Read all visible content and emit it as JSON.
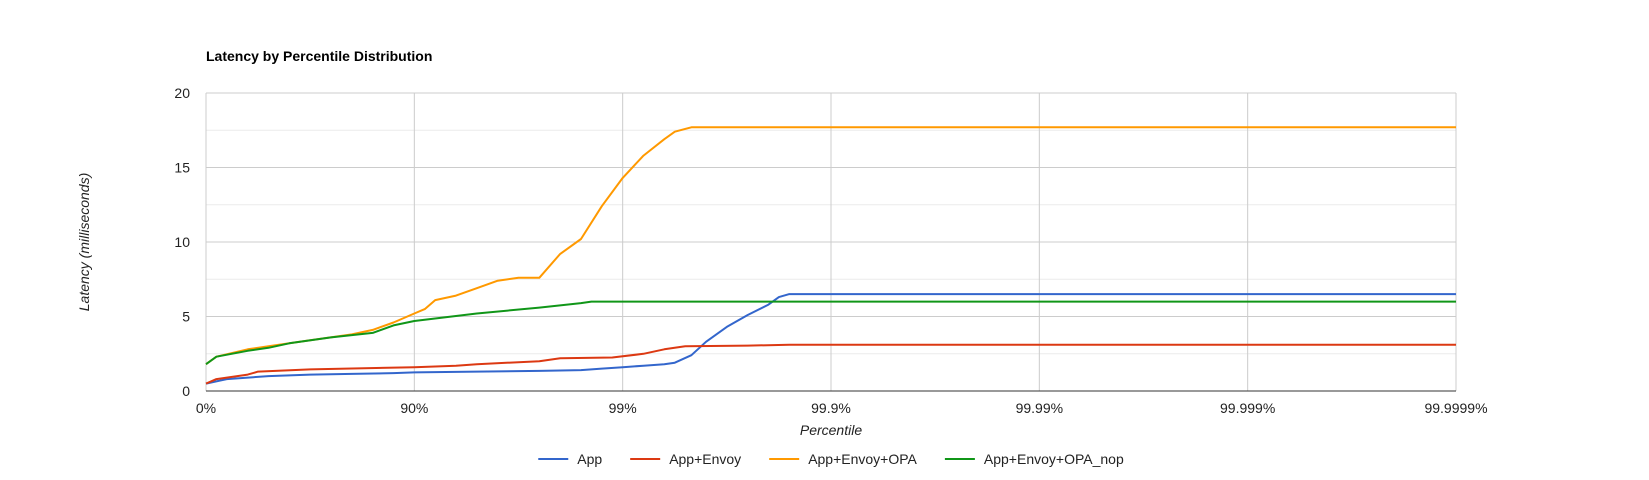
{
  "chart_data": {
    "type": "line",
    "title": "Latency by Percentile Distribution",
    "xlabel": "Percentile",
    "ylabel": "Latency (milliseconds)",
    "x_scale": "log-inverse (1/(1-p))",
    "x_ticks": [
      "0%",
      "90%",
      "99%",
      "99.9%",
      "99.99%",
      "99.999%",
      "99.9999%"
    ],
    "y_ticks": [
      "0",
      "5",
      "10",
      "15",
      "20"
    ],
    "ylim": [
      0,
      20
    ],
    "grid": true,
    "legend_position": "bottom",
    "series": [
      {
        "name": "App",
        "color": "#3366cc",
        "points": [
          [
            0,
            0.5
          ],
          [
            0.1,
            0.8
          ],
          [
            0.3,
            1.0
          ],
          [
            0.5,
            1.1
          ],
          [
            0.7,
            1.15
          ],
          [
            0.9,
            1.2
          ],
          [
            1.0,
            1.25
          ],
          [
            1.3,
            1.3
          ],
          [
            1.6,
            1.35
          ],
          [
            1.8,
            1.4
          ],
          [
            1.9,
            1.5
          ],
          [
            2.0,
            1.6
          ],
          [
            2.1,
            1.7
          ],
          [
            2.2,
            1.8
          ],
          [
            2.25,
            1.9
          ],
          [
            2.33,
            2.4
          ],
          [
            2.4,
            3.3
          ],
          [
            2.5,
            4.3
          ],
          [
            2.6,
            5.1
          ],
          [
            2.7,
            5.8
          ],
          [
            2.75,
            6.3
          ],
          [
            2.8,
            6.5
          ],
          [
            6.0,
            6.5
          ]
        ]
      },
      {
        "name": "App+Envoy",
        "color": "#dc3912",
        "points": [
          [
            0,
            0.5
          ],
          [
            0.05,
            0.8
          ],
          [
            0.2,
            1.1
          ],
          [
            0.25,
            1.3
          ],
          [
            0.5,
            1.45
          ],
          [
            1.0,
            1.6
          ],
          [
            1.2,
            1.7
          ],
          [
            1.3,
            1.8
          ],
          [
            1.6,
            2.0
          ],
          [
            1.7,
            2.2
          ],
          [
            1.95,
            2.25
          ],
          [
            2.1,
            2.5
          ],
          [
            2.2,
            2.8
          ],
          [
            2.3,
            3.0
          ],
          [
            2.6,
            3.05
          ],
          [
            2.8,
            3.1
          ],
          [
            6.0,
            3.1
          ]
        ]
      },
      {
        "name": "App+Envoy+OPA",
        "color": "#ff9900",
        "points": [
          [
            0,
            1.8
          ],
          [
            0.05,
            2.3
          ],
          [
            0.2,
            2.8
          ],
          [
            0.3,
            3.0
          ],
          [
            0.5,
            3.4
          ],
          [
            0.7,
            3.8
          ],
          [
            0.8,
            4.1
          ],
          [
            0.9,
            4.6
          ],
          [
            1.0,
            5.2
          ],
          [
            1.05,
            5.5
          ],
          [
            1.1,
            6.1
          ],
          [
            1.2,
            6.4
          ],
          [
            1.3,
            6.9
          ],
          [
            1.4,
            7.4
          ],
          [
            1.5,
            7.6
          ],
          [
            1.6,
            7.6
          ],
          [
            1.7,
            9.2
          ],
          [
            1.8,
            10.2
          ],
          [
            1.9,
            12.4
          ],
          [
            2.0,
            14.3
          ],
          [
            2.1,
            15.8
          ],
          [
            2.2,
            16.9
          ],
          [
            2.25,
            17.4
          ],
          [
            2.33,
            17.7
          ],
          [
            6.0,
            17.7
          ]
        ]
      },
      {
        "name": "App+Envoy+OPA_nop",
        "color": "#109618",
        "points": [
          [
            0,
            1.8
          ],
          [
            0.05,
            2.3
          ],
          [
            0.2,
            2.7
          ],
          [
            0.3,
            2.9
          ],
          [
            0.4,
            3.2
          ],
          [
            0.6,
            3.6
          ],
          [
            0.8,
            3.9
          ],
          [
            0.9,
            4.4
          ],
          [
            1.0,
            4.7
          ],
          [
            1.3,
            5.2
          ],
          [
            1.6,
            5.6
          ],
          [
            1.8,
            5.9
          ],
          [
            1.85,
            6.0
          ],
          [
            6.0,
            6.0
          ]
        ]
      }
    ]
  }
}
